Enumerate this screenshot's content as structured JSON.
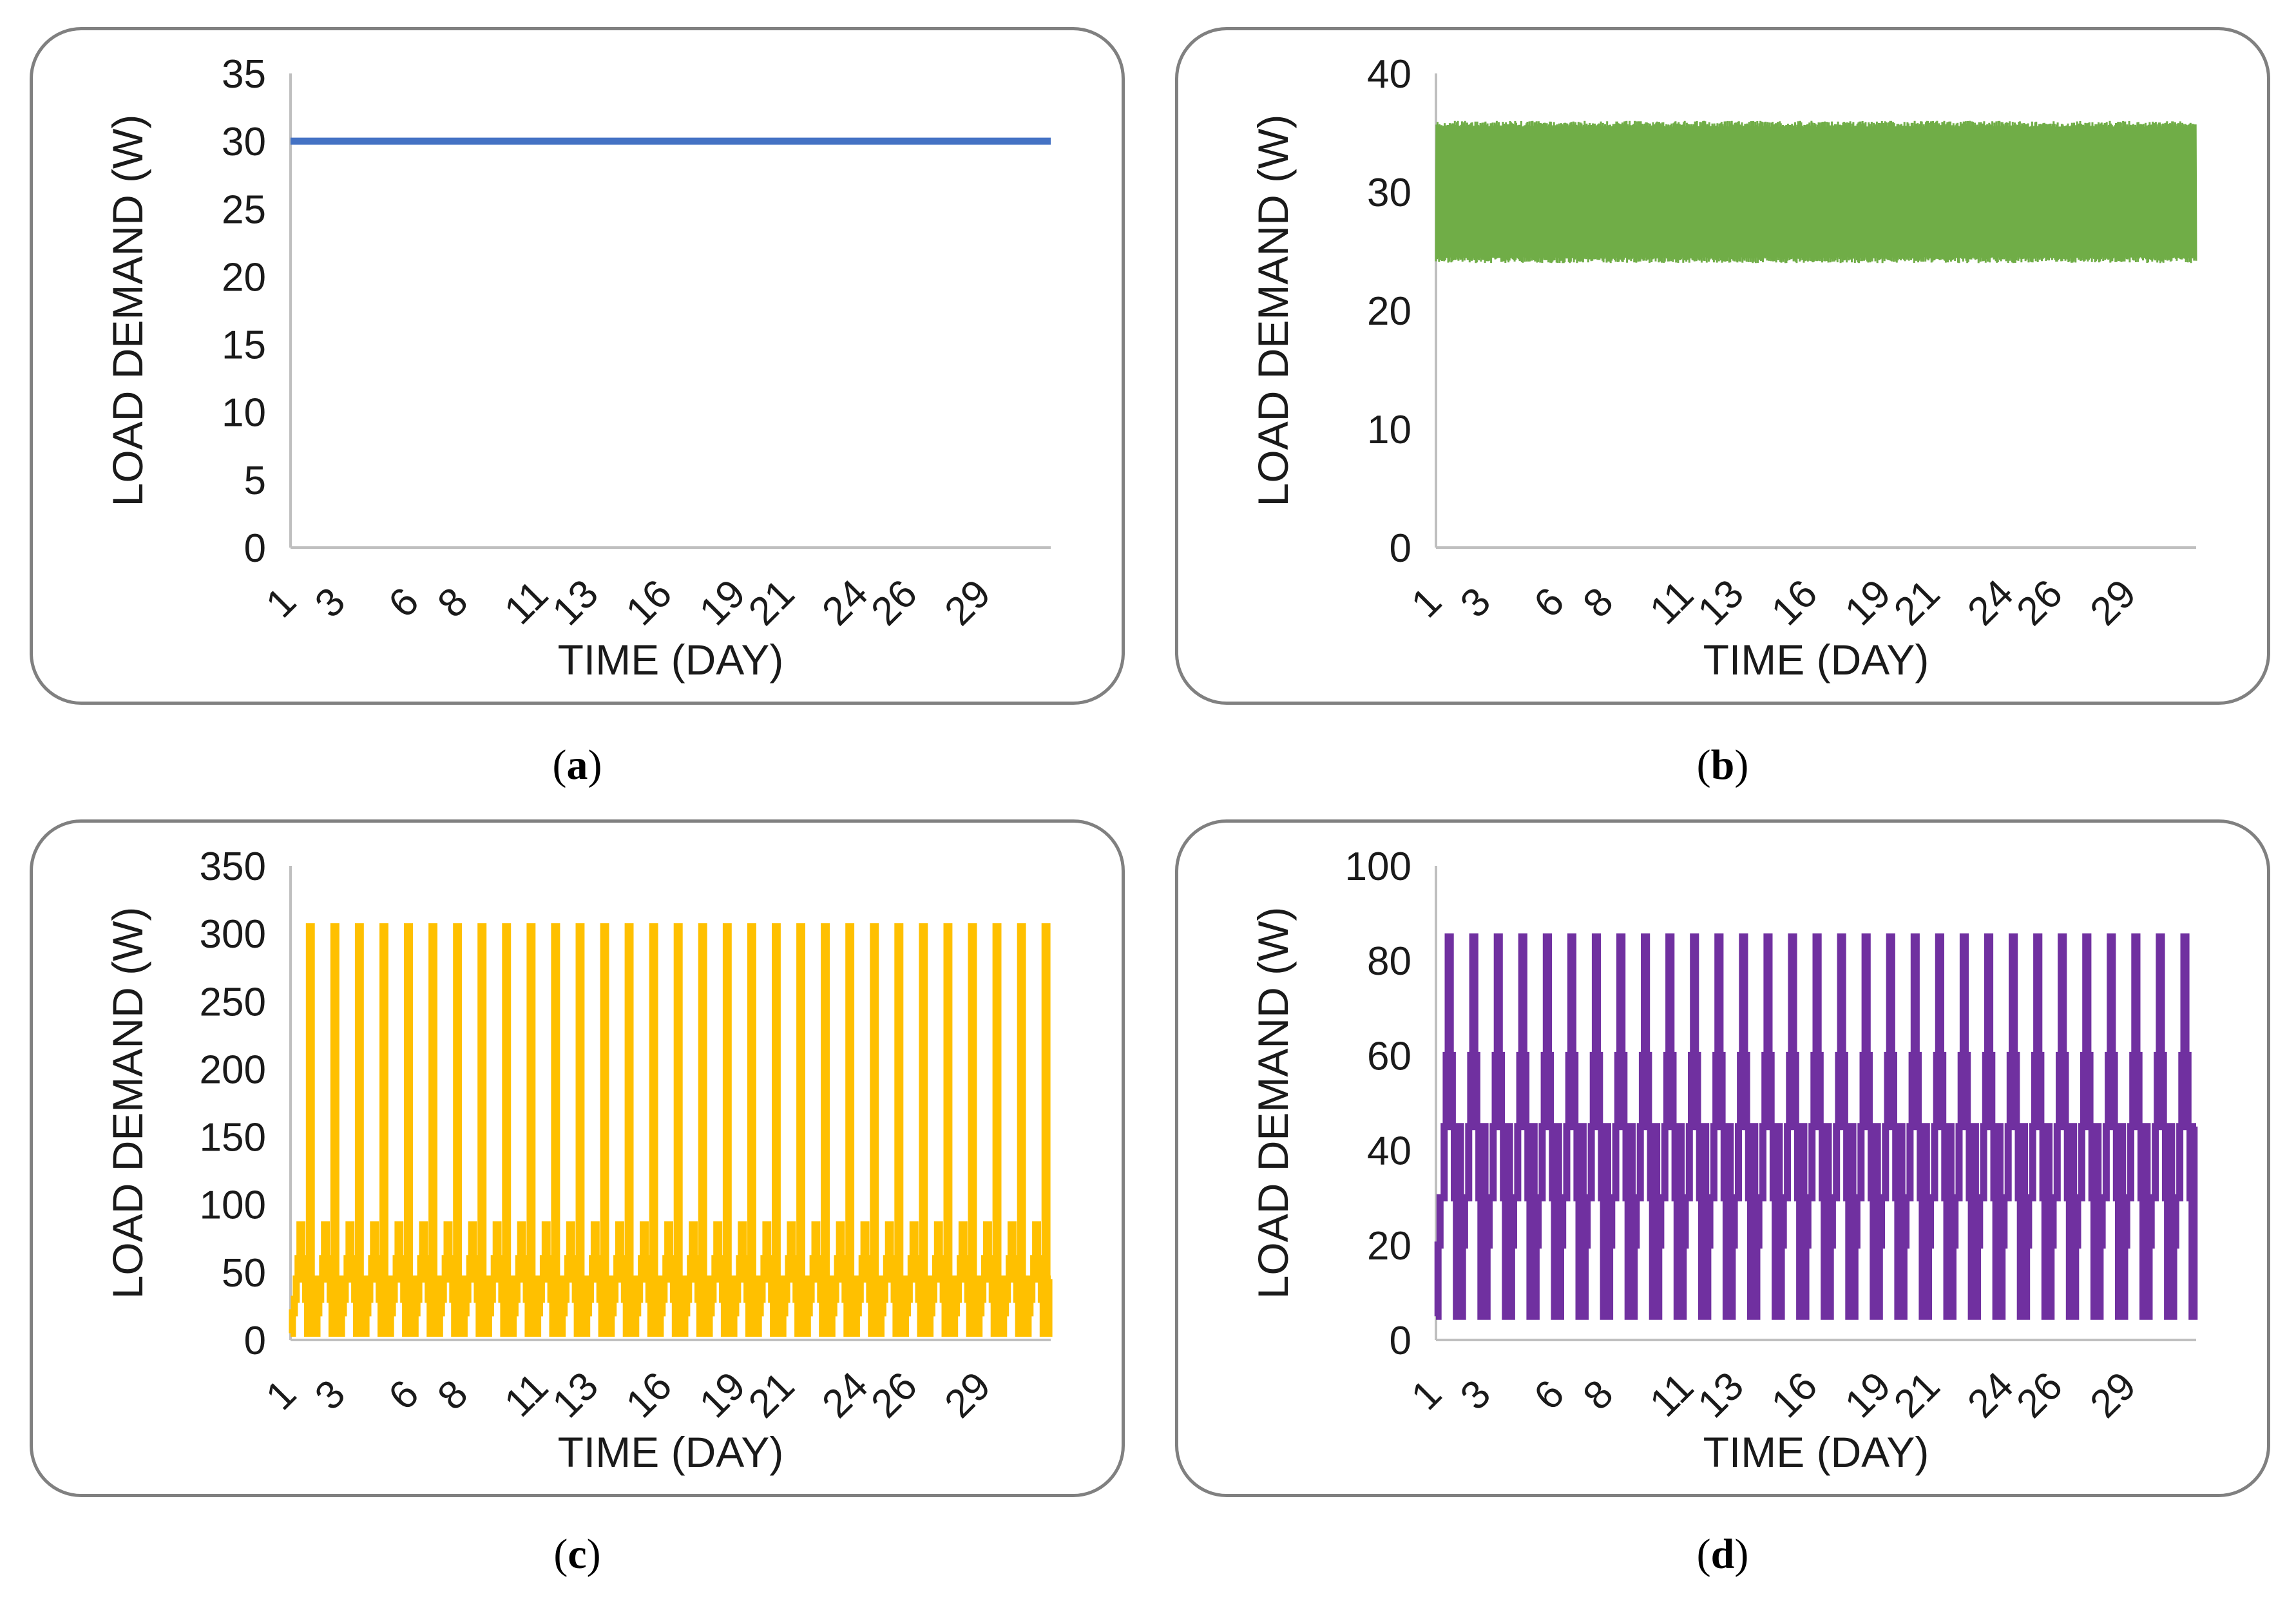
{
  "chart_data": [
    {
      "id": "a",
      "caption": "a",
      "type": "line",
      "color": "#4472C4",
      "xlabel": "TIME (DAY)",
      "ylabel": "LOAD DEMAND (W)",
      "ylim": [
        0,
        35
      ],
      "yticks": [
        "0",
        "5",
        "10",
        "15",
        "20",
        "25",
        "30",
        "35"
      ],
      "xticks": [
        "1",
        "3",
        "6",
        "8",
        "11",
        "13",
        "16",
        "19",
        "21",
        "24",
        "26",
        "29"
      ],
      "days": 31,
      "pattern": "constant",
      "value": 30
    },
    {
      "id": "b",
      "caption": "b",
      "type": "line",
      "color": "#70AD47",
      "xlabel": "TIME (DAY)",
      "ylabel": "LOAD DEMAND (W)",
      "ylim": [
        0,
        40
      ],
      "yticks": [
        "0",
        "10",
        "20",
        "30",
        "40"
      ],
      "xticks": [
        "1",
        "3",
        "6",
        "8",
        "11",
        "13",
        "16",
        "19",
        "21",
        "24",
        "26",
        "29"
      ],
      "days": 31,
      "pattern": "noise",
      "min": 24,
      "max": 36
    },
    {
      "id": "c",
      "caption": "c",
      "type": "line",
      "color": "#FFC000",
      "xlabel": "TIME (DAY)",
      "ylabel": "LOAD DEMAND (W)",
      "ylim": [
        0,
        350
      ],
      "yticks": [
        "0",
        "50",
        "100",
        "150",
        "200",
        "250",
        "300",
        "350"
      ],
      "xticks": [
        "1",
        "3",
        "6",
        "8",
        "11",
        "13",
        "16",
        "19",
        "21",
        "24",
        "26",
        "29"
      ],
      "days": 31,
      "pattern": "daily",
      "daily_profile": [
        5,
        20,
        30,
        45,
        60,
        85,
        60,
        45,
        30,
        5,
        305,
        5,
        45
      ]
    },
    {
      "id": "d",
      "caption": "d",
      "type": "line",
      "color": "#7030A0",
      "xlabel": "TIME (DAY)",
      "ylabel": "LOAD DEMAND (W)",
      "ylim": [
        0,
        100
      ],
      "yticks": [
        "0",
        "20",
        "40",
        "60",
        "80",
        "100"
      ],
      "xticks": [
        "1",
        "3",
        "6",
        "8",
        "11",
        "13",
        "16",
        "19",
        "21",
        "24",
        "26",
        "29"
      ],
      "days": 31,
      "pattern": "daily",
      "daily_profile": [
        5,
        20,
        30,
        30,
        45,
        60,
        85,
        60,
        45,
        30,
        5,
        45
      ]
    }
  ]
}
